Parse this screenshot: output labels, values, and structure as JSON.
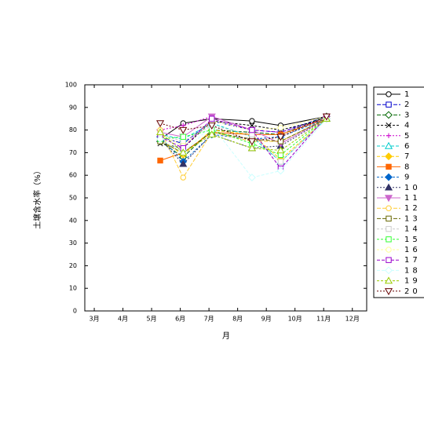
{
  "chart_data": {
    "type": "line",
    "ylabel": "土壌含水率（%）",
    "xlabel": "月",
    "xlim": [
      2.67,
      12.5
    ],
    "ylim": [
      0,
      100
    ],
    "xticks": [
      {
        "value": 3,
        "label": "3月"
      },
      {
        "value": 4,
        "label": "4月"
      },
      {
        "value": 5,
        "label": "5月"
      },
      {
        "value": 6,
        "label": "6月"
      },
      {
        "value": 7,
        "label": "7月"
      },
      {
        "value": 8,
        "label": "8月"
      },
      {
        "value": 9,
        "label": "9月"
      },
      {
        "value": 10,
        "label": "10月"
      },
      {
        "value": 11,
        "label": "11月"
      },
      {
        "value": 12,
        "label": "12月"
      }
    ],
    "yticks": [
      0,
      10,
      20,
      30,
      40,
      50,
      60,
      70,
      80,
      90,
      100
    ],
    "grid": false,
    "legend": "right",
    "x": [
      5.3,
      6.1,
      7.1,
      8.5,
      9.5,
      11.1
    ],
    "series": [
      {
        "name": "1",
        "color": "#000000",
        "marker": "circle",
        "filled": false,
        "dash": "",
        "values": [
          76,
          83,
          85,
          84,
          82,
          86
        ]
      },
      {
        "name": "2",
        "color": "#0000cc",
        "marker": "square",
        "filled": false,
        "dash": "5,2",
        "values": [
          77,
          74,
          84,
          80,
          79,
          86
        ]
      },
      {
        "name": "3",
        "color": "#006600",
        "marker": "diamond",
        "filled": false,
        "dash": "5,2",
        "values": [
          75,
          68,
          80,
          79,
          78,
          86
        ]
      },
      {
        "name": "4",
        "color": "#000000",
        "marker": "x",
        "filled": false,
        "dash": "3,2",
        "values": [
          74,
          72,
          84,
          82,
          80,
          85
        ]
      },
      {
        "name": "5",
        "color": "#cc00cc",
        "marker": "plus",
        "filled": false,
        "dash": "2,2",
        "values": [
          80,
          82,
          86,
          80,
          79,
          85
        ]
      },
      {
        "name": "6",
        "color": "#00cccc",
        "marker": "triangle",
        "filled": false,
        "dash": "4,2",
        "values": [
          78,
          76,
          83,
          77,
          66,
          85
        ]
      },
      {
        "name": "7",
        "color": "#ffcc00",
        "marker": "diamond",
        "filled": true,
        "dash": "4,2",
        "values": [
          76,
          69,
          80,
          78,
          67,
          85
        ]
      },
      {
        "name": "8",
        "color": "#ff6600",
        "marker": "square",
        "filled": true,
        "dash": "",
        "values": [
          66.5,
          70,
          79,
          78,
          78,
          85
        ]
      },
      {
        "name": "9",
        "color": "#0066cc",
        "marker": "diamond",
        "filled": true,
        "dash": "3,2",
        "values": [
          77,
          66,
          78,
          76,
          77,
          85
        ]
      },
      {
        "name": "10",
        "color": "#333366",
        "marker": "triangle",
        "filled": true,
        "dash": "2,2",
        "values": [
          76,
          65,
          78,
          72,
          73,
          85
        ]
      },
      {
        "name": "11",
        "color": "#cc66cc",
        "marker": "tridown",
        "filled": true,
        "dash": "",
        "values": [
          79,
          77,
          86,
          80,
          74,
          85
        ]
      },
      {
        "name": "12",
        "color": "#ffcc33",
        "marker": "circle",
        "filled": false,
        "dash": "5,2",
        "values": [
          80,
          59,
          79,
          75,
          75,
          85
        ]
      },
      {
        "name": "13",
        "color": "#666600",
        "marker": "square",
        "filled": false,
        "dash": "5,2",
        "values": [
          75,
          70,
          79,
          76,
          75,
          85
        ]
      },
      {
        "name": "14",
        "color": "#cccccc",
        "marker": "square",
        "filled": false,
        "dash": "3,2",
        "values": [
          78,
          75,
          82,
          78,
          66,
          85
        ]
      },
      {
        "name": "15",
        "color": "#33ff33",
        "marker": "square",
        "filled": false,
        "dash": "3,2",
        "values": [
          76,
          77,
          80,
          74,
          69,
          85
        ]
      },
      {
        "name": "16",
        "color": "#ffff99",
        "marker": "circle",
        "filled": false,
        "dash": "3,2",
        "values": [
          78,
          73,
          84,
          80,
          81,
          86
        ]
      },
      {
        "name": "17",
        "color": "#9900cc",
        "marker": "square",
        "filled": false,
        "dash": "4,2",
        "values": [
          77,
          72,
          85,
          80,
          63,
          86
        ]
      },
      {
        "name": "18",
        "color": "#ccffff",
        "marker": "diamond",
        "filled": false,
        "dash": "4,2",
        "values": [
          76,
          70,
          82,
          59,
          62,
          85
        ]
      },
      {
        "name": "19",
        "color": "#99cc00",
        "marker": "triangle",
        "filled": false,
        "dash": "3,2",
        "values": [
          79,
          70,
          78,
          72,
          71,
          85
        ]
      },
      {
        "name": "20",
        "color": "#660000",
        "marker": "tridown",
        "filled": false,
        "dash": "2,2",
        "values": [
          83,
          80,
          82,
          75,
          77,
          86
        ]
      }
    ]
  }
}
